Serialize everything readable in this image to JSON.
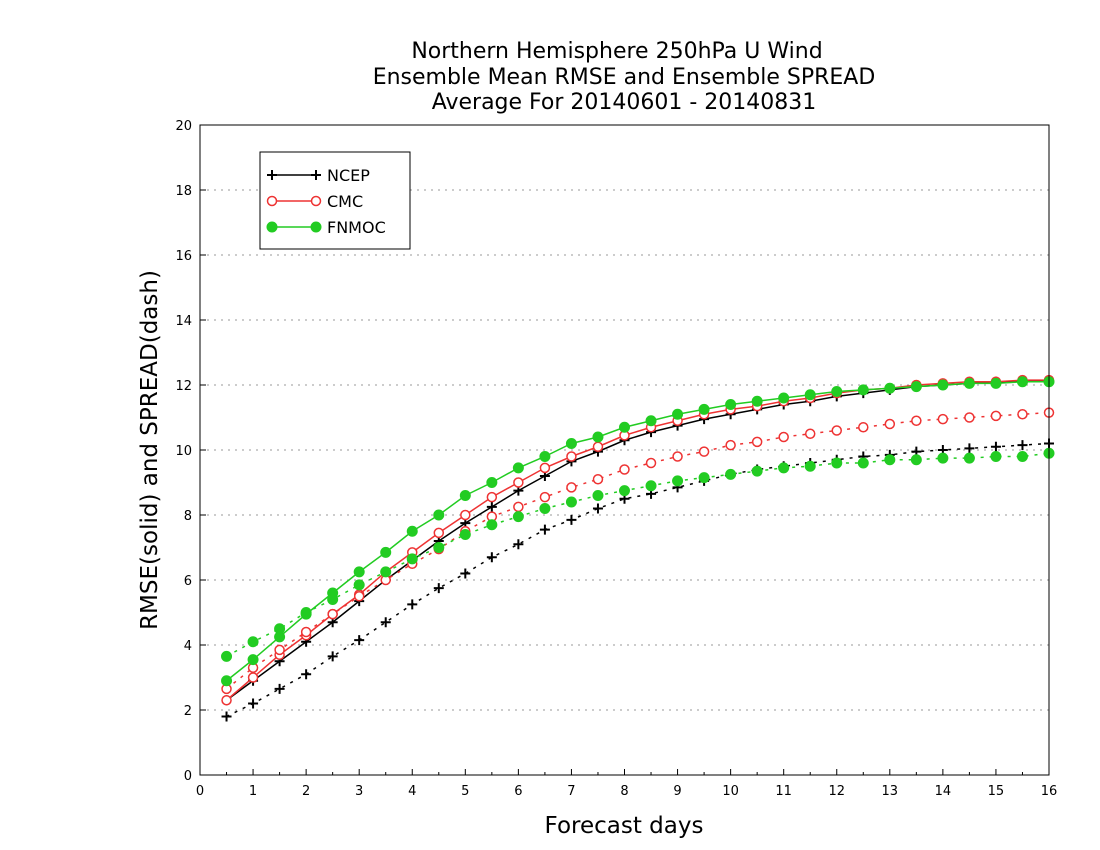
{
  "chart_data": {
    "type": "line",
    "title_lines": [
      "Northern Hemisphere 250hPa U Wind",
      "Ensemble Mean RMSE and Ensemble SPREAD",
      "Average For 20140601 - 20140831"
    ],
    "xlabel": "Forecast days",
    "ylabel": "RMSE(solid) and SPREAD(dash)",
    "xlim": [
      0,
      16
    ],
    "ylim": [
      0,
      20
    ],
    "xticks": [
      0,
      1,
      2,
      3,
      4,
      5,
      6,
      7,
      8,
      9,
      10,
      11,
      12,
      13,
      14,
      15,
      16
    ],
    "yticks": [
      0,
      2,
      4,
      6,
      8,
      10,
      12,
      14,
      16,
      18,
      20
    ],
    "grid": "horizontal dotted",
    "legend_position": "top-left",
    "x": [
      0.5,
      1,
      1.5,
      2,
      2.5,
      3,
      3.5,
      4,
      4.5,
      5,
      5.5,
      6,
      6.5,
      7,
      7.5,
      8,
      8.5,
      9,
      9.5,
      10,
      10.5,
      11,
      11.5,
      12,
      12.5,
      13,
      13.5,
      14,
      14.5,
      15,
      15.5,
      16
    ],
    "series": [
      {
        "name": "NCEP",
        "metric": "RMSE",
        "style": "solid",
        "marker": "plus",
        "color": "#000000",
        "values": [
          2.3,
          2.9,
          3.5,
          4.1,
          4.7,
          5.35,
          6.0,
          6.6,
          7.2,
          7.75,
          8.25,
          8.75,
          9.2,
          9.65,
          9.95,
          10.3,
          10.55,
          10.75,
          10.95,
          11.1,
          11.25,
          11.4,
          11.5,
          11.65,
          11.75,
          11.85,
          11.95,
          12.0,
          12.05,
          12.1,
          12.1,
          12.15
        ]
      },
      {
        "name": "NCEP",
        "metric": "SPREAD",
        "style": "dash",
        "marker": "plus",
        "color": "#000000",
        "values": [
          1.8,
          2.2,
          2.65,
          3.1,
          3.65,
          4.15,
          4.7,
          5.25,
          5.75,
          6.2,
          6.7,
          7.1,
          7.55,
          7.85,
          8.2,
          8.5,
          8.65,
          8.85,
          9.05,
          9.25,
          9.4,
          9.5,
          9.6,
          9.7,
          9.8,
          9.85,
          9.95,
          10.0,
          10.05,
          10.1,
          10.15,
          10.2
        ]
      },
      {
        "name": "CMC",
        "metric": "RMSE",
        "style": "solid",
        "marker": "open-circle",
        "color": "#ee3333",
        "values": [
          2.3,
          3.0,
          3.7,
          4.3,
          4.95,
          5.55,
          6.25,
          6.85,
          7.45,
          8.0,
          8.55,
          9.0,
          9.45,
          9.8,
          10.1,
          10.45,
          10.7,
          10.9,
          11.1,
          11.25,
          11.35,
          11.5,
          11.6,
          11.75,
          11.85,
          11.9,
          12.0,
          12.05,
          12.1,
          12.1,
          12.15,
          12.15
        ]
      },
      {
        "name": "CMC",
        "metric": "SPREAD",
        "style": "dash",
        "marker": "open-circle",
        "color": "#ee3333",
        "values": [
          2.65,
          3.3,
          3.85,
          4.4,
          4.95,
          5.5,
          6.0,
          6.5,
          6.95,
          7.5,
          7.95,
          8.25,
          8.55,
          8.85,
          9.1,
          9.4,
          9.6,
          9.8,
          9.95,
          10.15,
          10.25,
          10.4,
          10.5,
          10.6,
          10.7,
          10.8,
          10.9,
          10.95,
          11.0,
          11.05,
          11.1,
          11.15
        ]
      },
      {
        "name": "FNMOC",
        "metric": "RMSE",
        "style": "solid",
        "marker": "filled-circle",
        "color": "#22cc22",
        "values": [
          2.9,
          3.55,
          4.25,
          4.95,
          5.6,
          6.25,
          6.85,
          7.5,
          8.0,
          8.6,
          9.0,
          9.45,
          9.8,
          10.2,
          10.4,
          10.7,
          10.9,
          11.1,
          11.25,
          11.4,
          11.5,
          11.6,
          11.7,
          11.8,
          11.85,
          11.9,
          11.95,
          12.0,
          12.05,
          12.05,
          12.1,
          12.1
        ]
      },
      {
        "name": "FNMOC",
        "metric": "SPREAD",
        "style": "dash",
        "marker": "filled-circle",
        "color": "#22cc22",
        "values": [
          3.65,
          4.1,
          4.5,
          5.0,
          5.4,
          5.85,
          6.25,
          6.65,
          7.0,
          7.4,
          7.7,
          7.95,
          8.2,
          8.4,
          8.6,
          8.75,
          8.9,
          9.05,
          9.15,
          9.25,
          9.35,
          9.45,
          9.5,
          9.6,
          9.6,
          9.7,
          9.7,
          9.75,
          9.75,
          9.8,
          9.8,
          9.9
        ]
      }
    ],
    "legend": [
      {
        "label": "NCEP",
        "marker": "plus",
        "color": "#000000"
      },
      {
        "label": "CMC",
        "marker": "open-circle",
        "color": "#ee3333"
      },
      {
        "label": "FNMOC",
        "marker": "filled-circle",
        "color": "#22cc22"
      }
    ]
  }
}
